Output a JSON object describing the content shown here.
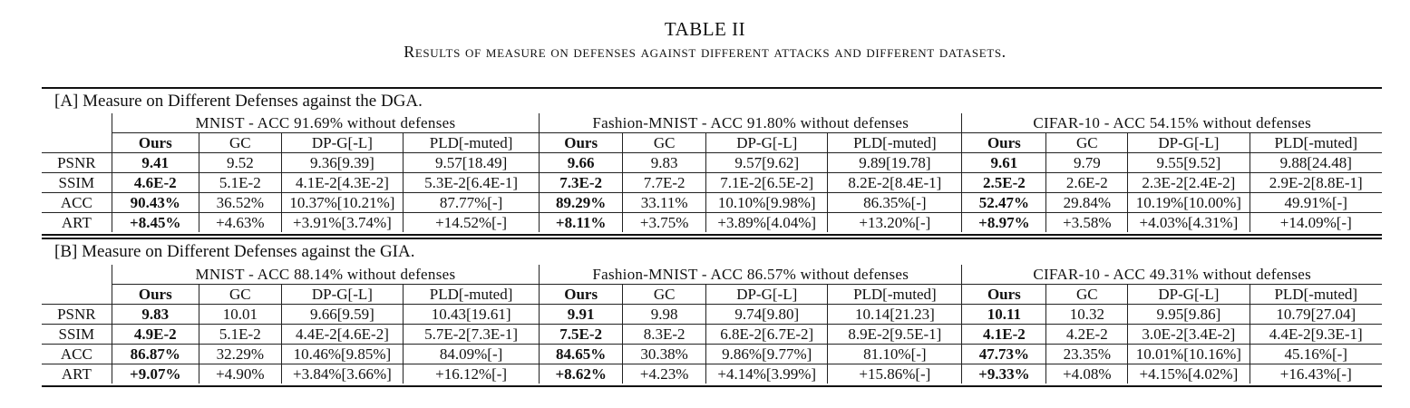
{
  "caption": {
    "label": "TABLE II",
    "text": "Results of measure on defenses against different attacks and different datasets."
  },
  "columns": [
    "Ours",
    "GC",
    "DP-G[-L]",
    "PLD[-muted]"
  ],
  "sections": [
    {
      "title": "[A] Measure on Different Defenses against the DGA.",
      "datasets": [
        "MNIST - ACC 91.69% without defenses",
        "Fashion-MNIST - ACC 91.80% without defenses",
        "CIFAR-10 - ACC 54.15% without defenses"
      ],
      "rows": [
        {
          "metric": "PSNR",
          "cells": [
            "9.41",
            "9.52",
            "9.36[9.39]",
            "9.57[18.49]",
            "9.66",
            "9.83",
            "9.57[9.62]",
            "9.89[19.78]",
            "9.61",
            "9.79",
            "9.55[9.52]",
            "9.88[24.48]"
          ]
        },
        {
          "metric": "SSIM",
          "cells": [
            "4.6E-2",
            "5.1E-2",
            "4.1E-2[4.3E-2]",
            "5.3E-2[6.4E-1]",
            "7.3E-2",
            "7.7E-2",
            "7.1E-2[6.5E-2]",
            "8.2E-2[8.4E-1]",
            "2.5E-2",
            "2.6E-2",
            "2.3E-2[2.4E-2]",
            "2.9E-2[8.8E-1]"
          ]
        },
        {
          "metric": "ACC",
          "cells": [
            "90.43%",
            "36.52%",
            "10.37%[10.21%]",
            "87.77%[-]",
            "89.29%",
            "33.11%",
            "10.10%[9.98%]",
            "86.35%[-]",
            "52.47%",
            "29.84%",
            "10.19%[10.00%]",
            "49.91%[-]"
          ]
        },
        {
          "metric": "ART",
          "cells": [
            "+8.45%",
            "+4.63%",
            "+3.91%[3.74%]",
            "+14.52%[-]",
            "+8.11%",
            "+3.75%",
            "+3.89%[4.04%]",
            "+13.20%[-]",
            "+8.97%",
            "+3.58%",
            "+4.03%[4.31%]",
            "+14.09%[-]"
          ]
        }
      ]
    },
    {
      "title": "[B] Measure on Different Defenses against the GIA.",
      "datasets": [
        "MNIST - ACC 88.14% without defenses",
        "Fashion-MNIST - ACC 86.57% without defenses",
        "CIFAR-10 - ACC 49.31% without defenses"
      ],
      "rows": [
        {
          "metric": "PSNR",
          "cells": [
            "9.83",
            "10.01",
            "9.66[9.59]",
            "10.43[19.61]",
            "9.91",
            "9.98",
            "9.74[9.80]",
            "10.14[21.23]",
            "10.11",
            "10.32",
            "9.95[9.86]",
            "10.79[27.04]"
          ]
        },
        {
          "metric": "SSIM",
          "cells": [
            "4.9E-2",
            "5.1E-2",
            "4.4E-2[4.6E-2]",
            "5.7E-2[7.3E-1]",
            "7.5E-2",
            "8.3E-2",
            "6.8E-2[6.7E-2]",
            "8.9E-2[9.5E-1]",
            "4.1E-2",
            "4.2E-2",
            "3.0E-2[3.4E-2]",
            "4.4E-2[9.3E-1]"
          ]
        },
        {
          "metric": "ACC",
          "cells": [
            "86.87%",
            "32.29%",
            "10.46%[9.85%]",
            "84.09%[-]",
            "84.65%",
            "30.38%",
            "9.86%[9.77%]",
            "81.10%[-]",
            "47.73%",
            "23.35%",
            "10.01%[10.16%]",
            "45.16%[-]"
          ]
        },
        {
          "metric": "ART",
          "cells": [
            "+9.07%",
            "+4.90%",
            "+3.84%[3.66%]",
            "+16.12%[-]",
            "+8.62%",
            "+4.23%",
            "+4.14%[3.99%]",
            "+15.86%[-]",
            "+9.33%",
            "+4.08%",
            "+4.15%[4.02%]",
            "+16.43%[-]"
          ]
        }
      ]
    }
  ]
}
